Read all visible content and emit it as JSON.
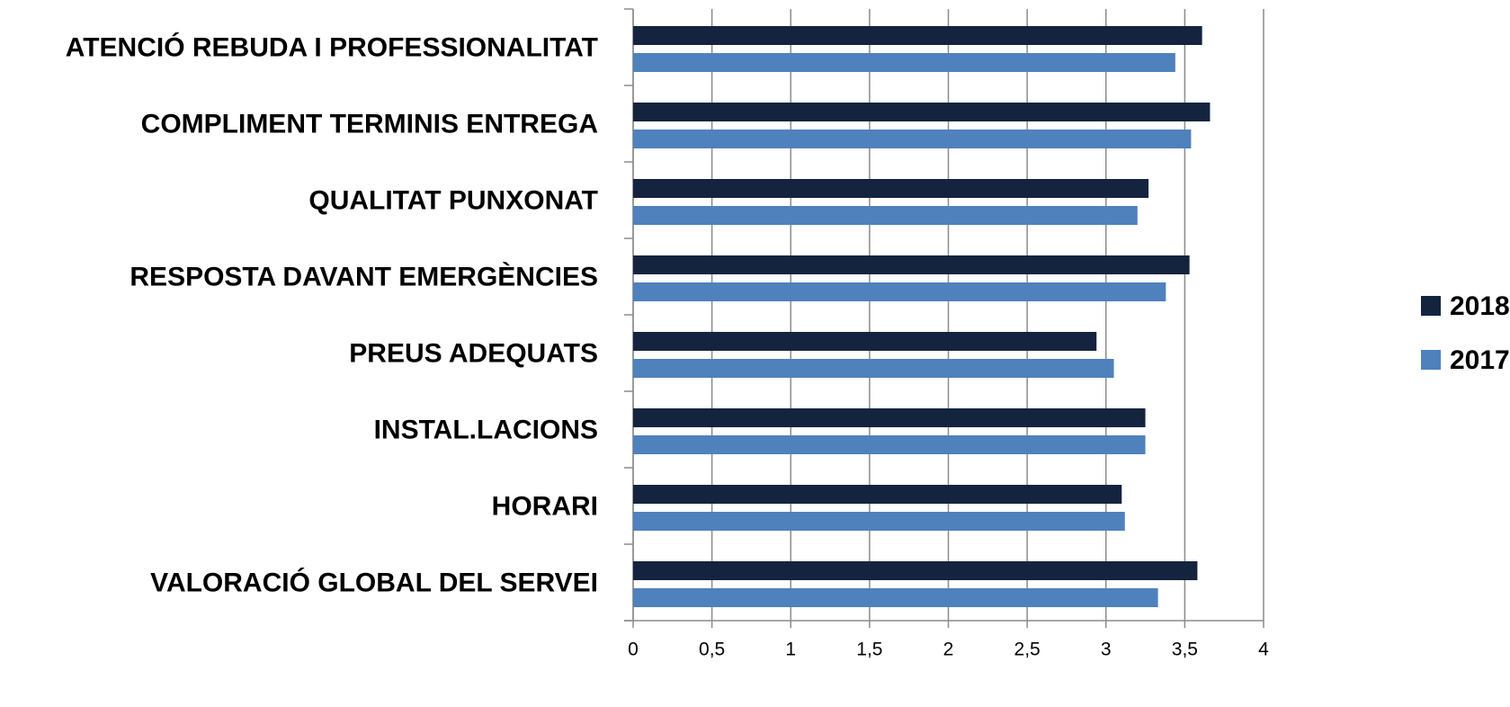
{
  "chart_data": {
    "type": "bar",
    "orientation": "horizontal",
    "categories": [
      "ATENCIÓ REBUDA I PROFESSIONALITAT",
      "COMPLIMENT TERMINIS ENTREGA",
      "QUALITAT PUNXONAT",
      "RESPOSTA DAVANT EMERGÈNCIES",
      "PREUS ADEQUATS",
      "INSTAL.LACIONS",
      "HORARI",
      "VALORACIÓ GLOBAL DEL SERVEI"
    ],
    "series": [
      {
        "name": "2018",
        "color": "#14243f",
        "values": [
          3.61,
          3.66,
          3.27,
          3.53,
          2.94,
          3.25,
          3.1,
          3.58
        ]
      },
      {
        "name": "2017",
        "color": "#4f81bd",
        "values": [
          3.44,
          3.54,
          3.2,
          3.38,
          3.05,
          3.25,
          3.12,
          3.33
        ]
      }
    ],
    "xlim": [
      0,
      4
    ],
    "xticks": [
      0,
      {
        "value": 0.5,
        "label": "0,5"
      },
      1,
      {
        "value": 1.5,
        "label": "1,5"
      },
      2,
      {
        "value": 2.5,
        "label": "2,5"
      },
      3,
      {
        "value": 3.5,
        "label": "3,5"
      },
      4
    ],
    "grid": true,
    "legend": "right"
  }
}
